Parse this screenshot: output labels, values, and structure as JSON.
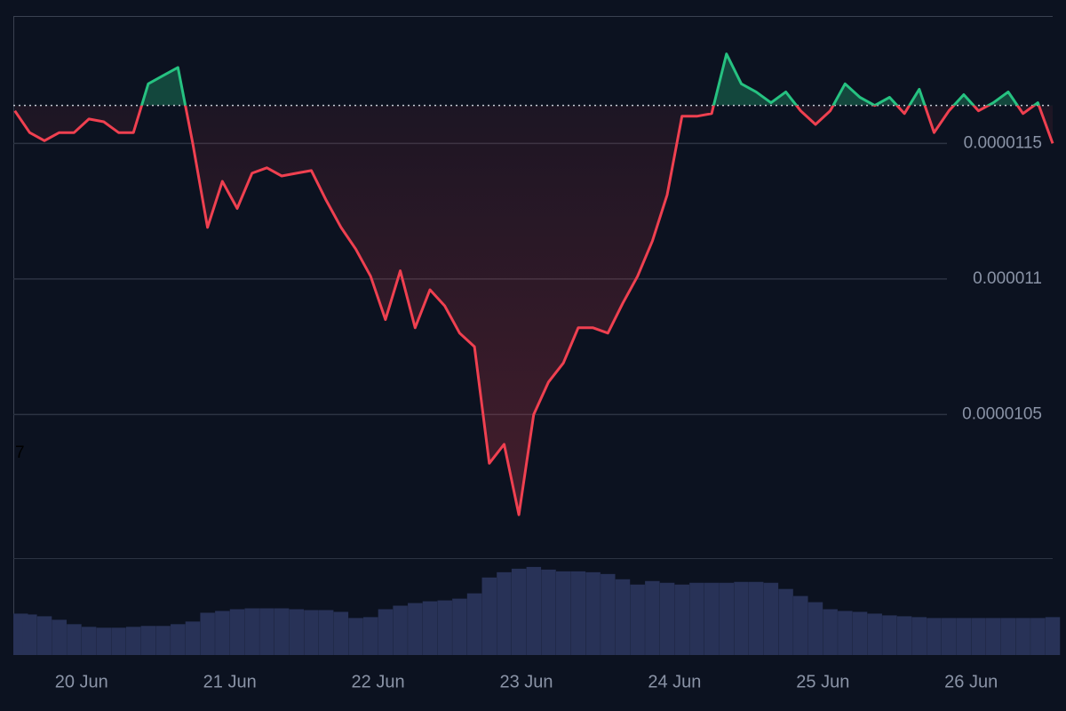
{
  "chart_data": {
    "type": "line",
    "overlay_text": "7",
    "x": [
      -0.45,
      -0.35,
      -0.25,
      -0.15,
      -0.05,
      0.05,
      0.15,
      0.25,
      0.35,
      0.45,
      0.55,
      0.65,
      0.75,
      0.85,
      0.95,
      1.05,
      1.15,
      1.25,
      1.35,
      1.45,
      1.55,
      1.65,
      1.75,
      1.85,
      1.95,
      2.05,
      2.15,
      2.25,
      2.35,
      2.45,
      2.55,
      2.65,
      2.75,
      2.85,
      2.95,
      3.05,
      3.15,
      3.25,
      3.35,
      3.45,
      3.55,
      3.65,
      3.75,
      3.85,
      3.95,
      4.05,
      4.15,
      4.25,
      4.35,
      4.45,
      4.55,
      4.65,
      4.75,
      4.85,
      4.95,
      5.05,
      5.15,
      5.25,
      5.35,
      5.45,
      5.55,
      5.65,
      5.75,
      5.85,
      5.95,
      6.05,
      6.15,
      6.25,
      6.35,
      6.45,
      6.55
    ],
    "series": [
      {
        "name": "Price",
        "color_up": "#26c281",
        "color_down": "#ef4050",
        "values": [
          1.162e-05,
          1.154e-05,
          1.151e-05,
          1.154e-05,
          1.154e-05,
          1.159e-05,
          1.158e-05,
          1.154e-05,
          1.154e-05,
          1.172e-05,
          1.175e-05,
          1.178e-05,
          1.15e-05,
          1.119e-05,
          1.136e-05,
          1.126e-05,
          1.139e-05,
          1.141e-05,
          1.138e-05,
          1.139e-05,
          1.14e-05,
          1.129e-05,
          1.119e-05,
          1.111e-05,
          1.101e-05,
          1.085e-05,
          1.103e-05,
          1.082e-05,
          1.096e-05,
          1.09e-05,
          1.08e-05,
          1.075e-05,
          1.032e-05,
          1.039e-05,
          1.013e-05,
          1.05e-05,
          1.062e-05,
          1.069e-05,
          1.082e-05,
          1.082e-05,
          1.08e-05,
          1.091e-05,
          1.101e-05,
          1.114e-05,
          1.131e-05,
          1.16e-05,
          1.16e-05,
          1.161e-05,
          1.183e-05,
          1.172e-05,
          1.169e-05,
          1.165e-05,
          1.169e-05,
          1.162e-05,
          1.157e-05,
          1.162e-05,
          1.172e-05,
          1.167e-05,
          1.164e-05,
          1.167e-05,
          1.161e-05,
          1.17e-05,
          1.154e-05,
          1.162e-05,
          1.168e-05,
          1.162e-05,
          1.165e-05,
          1.169e-05,
          1.161e-05,
          1.165e-05,
          1.15e-05
        ]
      },
      {
        "name": "Volume",
        "color": "#283257",
        "values": [
          47,
          46,
          44,
          40,
          35,
          32,
          31,
          31,
          32,
          33,
          33,
          35,
          38,
          48,
          50,
          52,
          53,
          53,
          53,
          52,
          51,
          51,
          49,
          42,
          43,
          52,
          56,
          59,
          61,
          62,
          64,
          70,
          88,
          94,
          98,
          100,
          97,
          95,
          95,
          94,
          92,
          86,
          80,
          84,
          82,
          80,
          82,
          82,
          82,
          83,
          83,
          82,
          75,
          67,
          60,
          52,
          50,
          49,
          47,
          45,
          44,
          43,
          42,
          42,
          42,
          42,
          42,
          42,
          42,
          42,
          43
        ]
      }
    ],
    "baseline": 1.164e-05,
    "xlim": [
      -0.46,
      6.55
    ],
    "xticks": [
      {
        "value": 0,
        "label": "20 Jun"
      },
      {
        "value": 1,
        "label": "21 Jun"
      },
      {
        "value": 2,
        "label": "22 Jun"
      },
      {
        "value": 3,
        "label": "23 Jun"
      },
      {
        "value": 4,
        "label": "24 Jun"
      },
      {
        "value": 5,
        "label": "25 Jun"
      },
      {
        "value": 6,
        "label": "26 Jun"
      }
    ],
    "ylim": [
      9.97e-06,
      1.197e-05
    ],
    "yticks": [
      1.05e-05,
      1.1e-05,
      1.15e-05
    ],
    "volume_ylim": [
      0,
      110
    ],
    "grid": true
  }
}
